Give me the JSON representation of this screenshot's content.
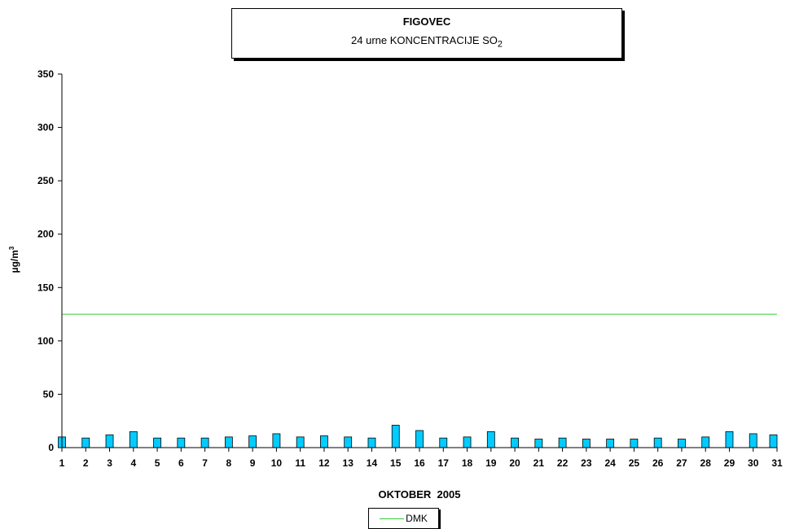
{
  "chart_data": {
    "type": "bar",
    "title": "FIGOVEC",
    "subtitle_prefix": "24 urne KONCENTRACIJE SO",
    "subtitle_sub": "2",
    "xlabel": "OKTOBER  2005",
    "ylabel_prefix": "µg/m",
    "ylabel_sup": "3",
    "ylim": [
      0,
      350
    ],
    "yticks": [
      0,
      50,
      100,
      150,
      200,
      250,
      300,
      350
    ],
    "categories": [
      "1",
      "2",
      "3",
      "4",
      "5",
      "6",
      "7",
      "8",
      "9",
      "10",
      "11",
      "12",
      "13",
      "14",
      "15",
      "16",
      "17",
      "18",
      "19",
      "20",
      "21",
      "22",
      "23",
      "24",
      "25",
      "26",
      "27",
      "28",
      "29",
      "30",
      "31"
    ],
    "values": [
      10,
      9,
      12,
      15,
      9,
      9,
      9,
      10,
      11,
      13,
      10,
      11,
      10,
      9,
      21,
      16,
      9,
      10,
      15,
      9,
      8,
      9,
      8,
      8,
      8,
      9,
      8,
      10,
      15,
      13,
      12
    ],
    "bar_color": "#00ccff",
    "reference_lines": [
      {
        "name": "DMK",
        "value": 125,
        "color": "#33cc33"
      }
    ],
    "grid": false,
    "legend_position": "bottom-center"
  }
}
